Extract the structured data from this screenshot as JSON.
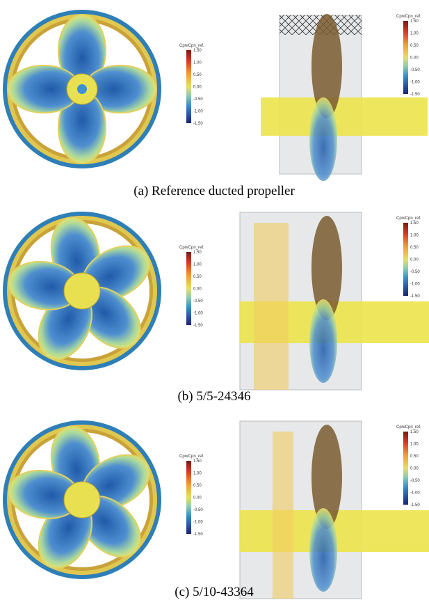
{
  "panels": [
    {
      "caption": "(a) Reference ducted propeller",
      "views": [
        {
          "legend": {
            "title": "Cpn/Cpn_ref.",
            "ticks": [
              "1.50",
              "1.00",
              "0.50",
              "0.00",
              "-0.50",
              "-1.00",
              "-1.50"
            ]
          }
        },
        {
          "legend": {
            "title": "Cpn/Cpn_ref.",
            "ticks": [
              "1.50",
              "1.00",
              "0.50",
              "0.00",
              "-0.50",
              "-1.00",
              "-1.50"
            ]
          }
        }
      ]
    },
    {
      "caption": "(b) 5/5-24346",
      "views": [
        {
          "legend": {
            "title": "Cpn/Cpn_ref.",
            "ticks": [
              "1.50",
              "1.00",
              "0.50",
              "0.00",
              "-0.50",
              "-1.00",
              "-1.50"
            ]
          }
        },
        {
          "legend": {
            "title": "Cpn/Cpn_ref.",
            "ticks": [
              "1.50",
              "1.00",
              "0.50",
              "0.00",
              "-0.50",
              "-1.00",
              "-1.50"
            ]
          }
        }
      ]
    },
    {
      "caption": "(c) 5/10-43364",
      "views": [
        {
          "legend": {
            "title": "Cpn/Cpn_ref.",
            "ticks": [
              "1.50",
              "1.00",
              "0.50",
              "0.00",
              "-0.50",
              "-1.00",
              "-1.50"
            ]
          }
        },
        {
          "legend": {
            "title": "Cpn/Cpn_ref.",
            "ticks": [
              "1.50",
              "1.00",
              "0.50",
              "0.00",
              "-0.50",
              "-1.00",
              "-1.50"
            ]
          }
        }
      ]
    }
  ]
}
